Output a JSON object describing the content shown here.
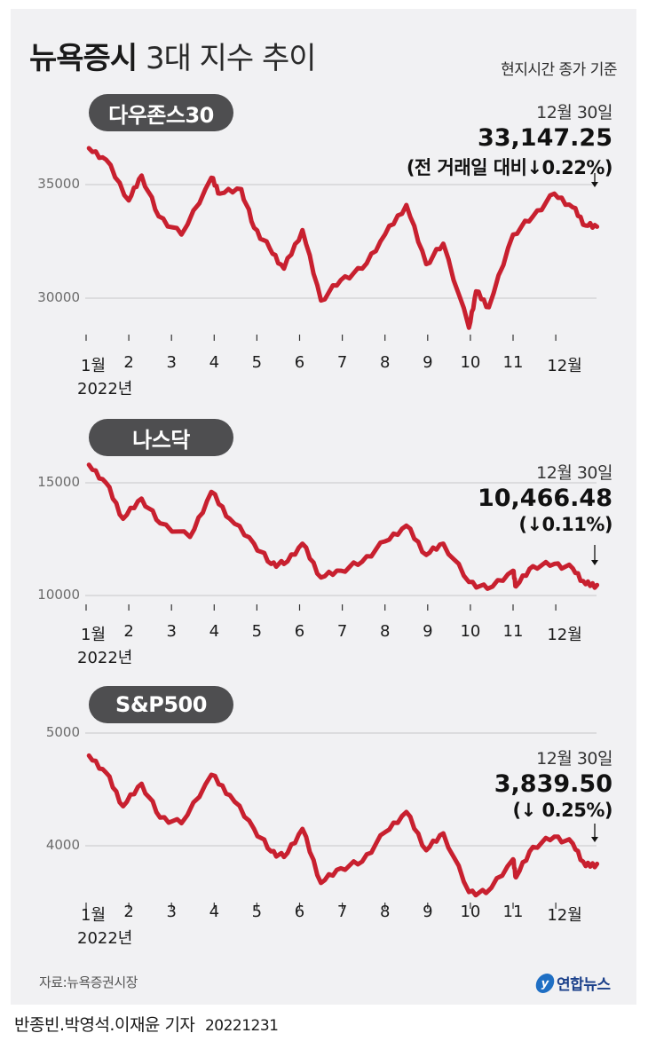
{
  "header": {
    "title_bold": "뉴욕증시",
    "title_light": "3대 지수 추이",
    "basis": "현지시간 종가 기준"
  },
  "footer": {
    "source": "자료:뉴욕증권시장",
    "logo_text": "연합뉴스",
    "byline": "반종빈.박영석.이재윤 기자",
    "byline_date": "20221231"
  },
  "colors": {
    "line": "#c8202f",
    "panel_bg": "#f1f1f3",
    "pill_bg": "#4e4e50",
    "gridline": "#d6d6d8"
  },
  "x_axis": {
    "ticks": [
      "1월",
      "2",
      "3",
      "4",
      "5",
      "6",
      "7",
      "8",
      "9",
      "10",
      "11",
      "12월"
    ],
    "year_label": "2022년"
  },
  "chart_data": [
    {
      "type": "line",
      "title": "다우존스30",
      "xlabel": "2022년 (월)",
      "ylabel": "",
      "yticks": [
        30000,
        35000
      ],
      "ylim": [
        28500,
        37000
      ],
      "grid": true,
      "x": [
        "1/3",
        "1/15",
        "2/1",
        "2/10",
        "2/22",
        "3/8",
        "3/29",
        "4/5",
        "4/20",
        "4/29",
        "5/10",
        "5/20",
        "6/3",
        "6/16",
        "6/30",
        "7/15",
        "8/1",
        "8/16",
        "8/30",
        "9/12",
        "9/30",
        "10/5",
        "10/14",
        "10/31",
        "11/15",
        "11/30",
        "12/13",
        "12/22",
        "12/30"
      ],
      "values": [
        36600,
        36100,
        34300,
        35400,
        33600,
        32800,
        35300,
        34600,
        34800,
        33100,
        32200,
        31300,
        33000,
        29900,
        30800,
        31300,
        32800,
        34100,
        31500,
        32400,
        28700,
        30300,
        29600,
        32800,
        33600,
        34600,
        34000,
        33200,
        33147.25
      ],
      "annotation": {
        "date": "12월 30일",
        "value": "33,147.25",
        "change": "(전 거래일 대비↓0.22%)"
      }
    },
    {
      "type": "line",
      "title": "나스닥",
      "xlabel": "2022년 (월)",
      "ylabel": "",
      "yticks": [
        10000,
        15000
      ],
      "ylim": [
        9800,
        16200
      ],
      "grid": true,
      "x": [
        "1/3",
        "1/15",
        "1/27",
        "2/10",
        "2/23",
        "3/14",
        "3/29",
        "4/12",
        "4/29",
        "5/11",
        "5/20",
        "6/3",
        "6/16",
        "6/30",
        "7/15",
        "8/1",
        "8/16",
        "8/30",
        "9/12",
        "9/30",
        "10/13",
        "10/31",
        "11/3",
        "11/15",
        "11/30",
        "12/13",
        "12/22",
        "12/30"
      ],
      "values": [
        15800,
        15000,
        13400,
        14300,
        13200,
        12600,
        14600,
        13400,
        12300,
        11400,
        11400,
        12300,
        10800,
        11100,
        11500,
        12400,
        13100,
        11800,
        12300,
        10600,
        10300,
        11100,
        10400,
        11300,
        11400,
        11200,
        10500,
        10466.48
      ],
      "annotation": {
        "date": "12월 30일",
        "value": "10,466.48",
        "change": "(↓0.11%)"
      }
    },
    {
      "type": "line",
      "title": "S&P500",
      "xlabel": "2022년 (월)",
      "ylabel": "",
      "yticks": [
        4000,
        5000
      ],
      "ylim": [
        3550,
        5000
      ],
      "grid": true,
      "x": [
        "1/3",
        "1/15",
        "1/27",
        "2/10",
        "2/23",
        "3/8",
        "3/29",
        "4/12",
        "4/29",
        "5/11",
        "5/20",
        "6/3",
        "6/16",
        "6/30",
        "7/15",
        "8/1",
        "8/16",
        "8/30",
        "9/12",
        "9/30",
        "10/12",
        "10/31",
        "11/3",
        "11/15",
        "11/30",
        "12/13",
        "12/22",
        "12/30"
      ],
      "values": [
        4800,
        4650,
        4350,
        4550,
        4250,
        4200,
        4630,
        4450,
        4150,
        3950,
        3900,
        4150,
        3670,
        3800,
        3860,
        4120,
        4300,
        3960,
        4110,
        3590,
        3580,
        3880,
        3720,
        3990,
        4080,
        4020,
        3820,
        3839.5
      ],
      "annotation": {
        "date": "12월 30일",
        "value": "3,839.50",
        "change": "(↓ 0.25%)"
      }
    }
  ]
}
